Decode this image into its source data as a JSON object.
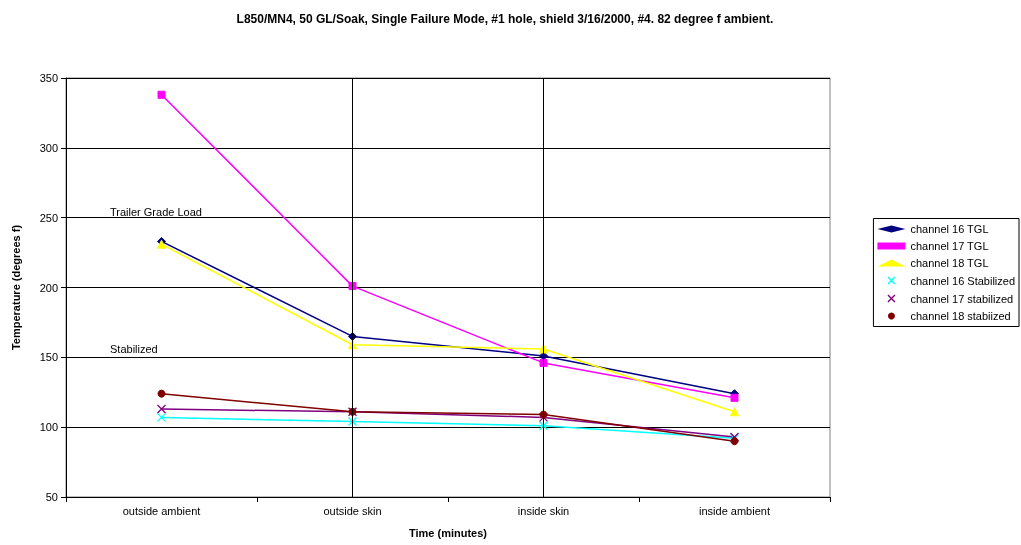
{
  "chart_data": {
    "type": "line",
    "title": "L850/MN4, 50 GL/Soak, Single Failure Mode, #1 hole, shield 3/16/2000, #4. 82 degree f ambient.",
    "xlabel": "Time (minutes)",
    "ylabel": "Temperature (degrees f)",
    "categories": [
      "outside ambient",
      "outside skin",
      "inside skin",
      "inside ambient"
    ],
    "series": [
      {
        "name": "channel 16 TGL",
        "color": "#000080",
        "marker": "diamond",
        "values": [
          233,
          165,
          151,
          124
        ]
      },
      {
        "name": "channel 17 TGL",
        "color": "#ff00ff",
        "marker": "square",
        "values": [
          338,
          201,
          146,
          121
        ]
      },
      {
        "name": "channel 18 TGL",
        "color": "#ffff00",
        "marker": "triangle",
        "values": [
          231,
          159,
          156,
          111
        ]
      },
      {
        "name": "channel 16 Stabilized",
        "color": "#00ffff",
        "marker": "cross",
        "values": [
          107,
          104,
          101,
          92
        ]
      },
      {
        "name": "channel 17 stabilized",
        "color": "#800080",
        "marker": "cross",
        "values": [
          113,
          111,
          107,
          93
        ]
      },
      {
        "name": "channel 18 stabiized",
        "color": "#800000",
        "marker": "circle",
        "values": [
          124,
          111,
          109,
          90
        ]
      }
    ],
    "ylim": [
      50,
      350
    ],
    "yticks": [
      50,
      100,
      150,
      200,
      250,
      300,
      350
    ],
    "grid": "y",
    "legend": "right",
    "line_style": "solid",
    "ref_lines": [
      {
        "axis": "x",
        "value": "outside skin",
        "color": "#000000"
      },
      {
        "axis": "x",
        "value": "inside skin",
        "color": "#000000"
      }
    ],
    "annotations": [
      "Trailer Grade Load",
      "Stabilized"
    ]
  }
}
